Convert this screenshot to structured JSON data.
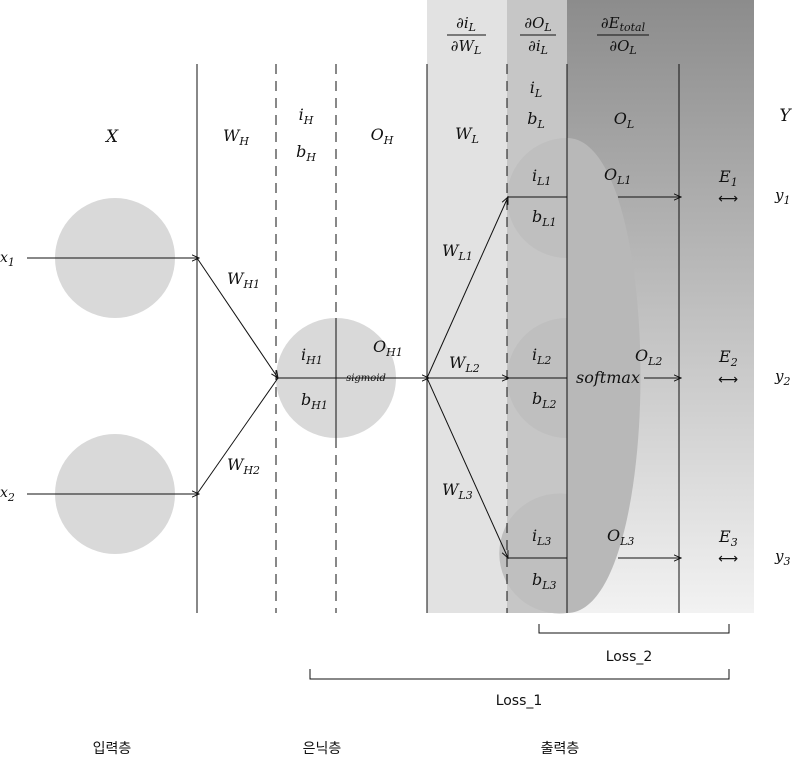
{
  "input_layer": {
    "header": "X",
    "nodes": [
      {
        "var": "x",
        "sub": "1"
      },
      {
        "var": "x",
        "sub": "2"
      }
    ]
  },
  "input_weights": {
    "header": {
      "var": "W",
      "sub": "H"
    },
    "edges": [
      {
        "var": "W",
        "sub": "H1"
      },
      {
        "var": "W",
        "sub": "H2"
      }
    ]
  },
  "hidden_layer": {
    "header_in": {
      "var": "i",
      "sub": "H"
    },
    "header_bias": {
      "var": "b",
      "sub": "H"
    },
    "header_out": {
      "var": "O",
      "sub": "H"
    },
    "node": {
      "in": {
        "var": "i",
        "sub": "H1"
      },
      "bias": {
        "var": "b",
        "sub": "H1"
      },
      "activation": "sigmoid",
      "out": {
        "var": "O",
        "sub": "H1"
      }
    }
  },
  "output_weights": {
    "header": {
      "var": "W",
      "sub": "L"
    },
    "edges": [
      {
        "var": "W",
        "sub": "L1"
      },
      {
        "var": "W",
        "sub": "L2"
      },
      {
        "var": "W",
        "sub": "L3"
      }
    ]
  },
  "gradients": {
    "g1": {
      "num": {
        "var": "∂i",
        "sub": "L"
      },
      "den": {
        "var": "∂W",
        "sub": "L"
      }
    },
    "g2": {
      "num": {
        "var": "∂O",
        "sub": "L"
      },
      "den": {
        "var": "∂i",
        "sub": "L"
      }
    },
    "g3": {
      "num": {
        "var": "∂E",
        "sub": "total"
      },
      "den": {
        "var": "∂O",
        "sub": "L"
      }
    }
  },
  "output_layer": {
    "header_in": {
      "var": "i",
      "sub": "L"
    },
    "header_bias": {
      "var": "b",
      "sub": "L"
    },
    "header_out": {
      "var": "O",
      "sub": "L"
    },
    "activation": "softmax",
    "nodes": [
      {
        "in": {
          "var": "i",
          "sub": "L1"
        },
        "bias": {
          "var": "b",
          "sub": "L1"
        },
        "out": {
          "var": "O",
          "sub": "L1"
        }
      },
      {
        "in": {
          "var": "i",
          "sub": "L2"
        },
        "bias": {
          "var": "b",
          "sub": "L2"
        },
        "out": {
          "var": "O",
          "sub": "L2"
        }
      },
      {
        "in": {
          "var": "i",
          "sub": "L3"
        },
        "bias": {
          "var": "b",
          "sub": "L3"
        },
        "out": {
          "var": "O",
          "sub": "L3"
        }
      }
    ]
  },
  "errors": [
    {
      "var": "E",
      "sub": "1"
    },
    {
      "var": "E",
      "sub": "2"
    },
    {
      "var": "E",
      "sub": "3"
    }
  ],
  "error_symbol": "⟷",
  "targets": {
    "header": "Y",
    "items": [
      {
        "var": "y",
        "sub": "1"
      },
      {
        "var": "y",
        "sub": "2"
      },
      {
        "var": "y",
        "sub": "3"
      }
    ]
  },
  "losses": {
    "loss_2": "Loss_2",
    "loss_1": "Loss_1"
  },
  "layer_labels": {
    "input": "입력층",
    "hidden": "은닉층",
    "output": "출력층"
  }
}
